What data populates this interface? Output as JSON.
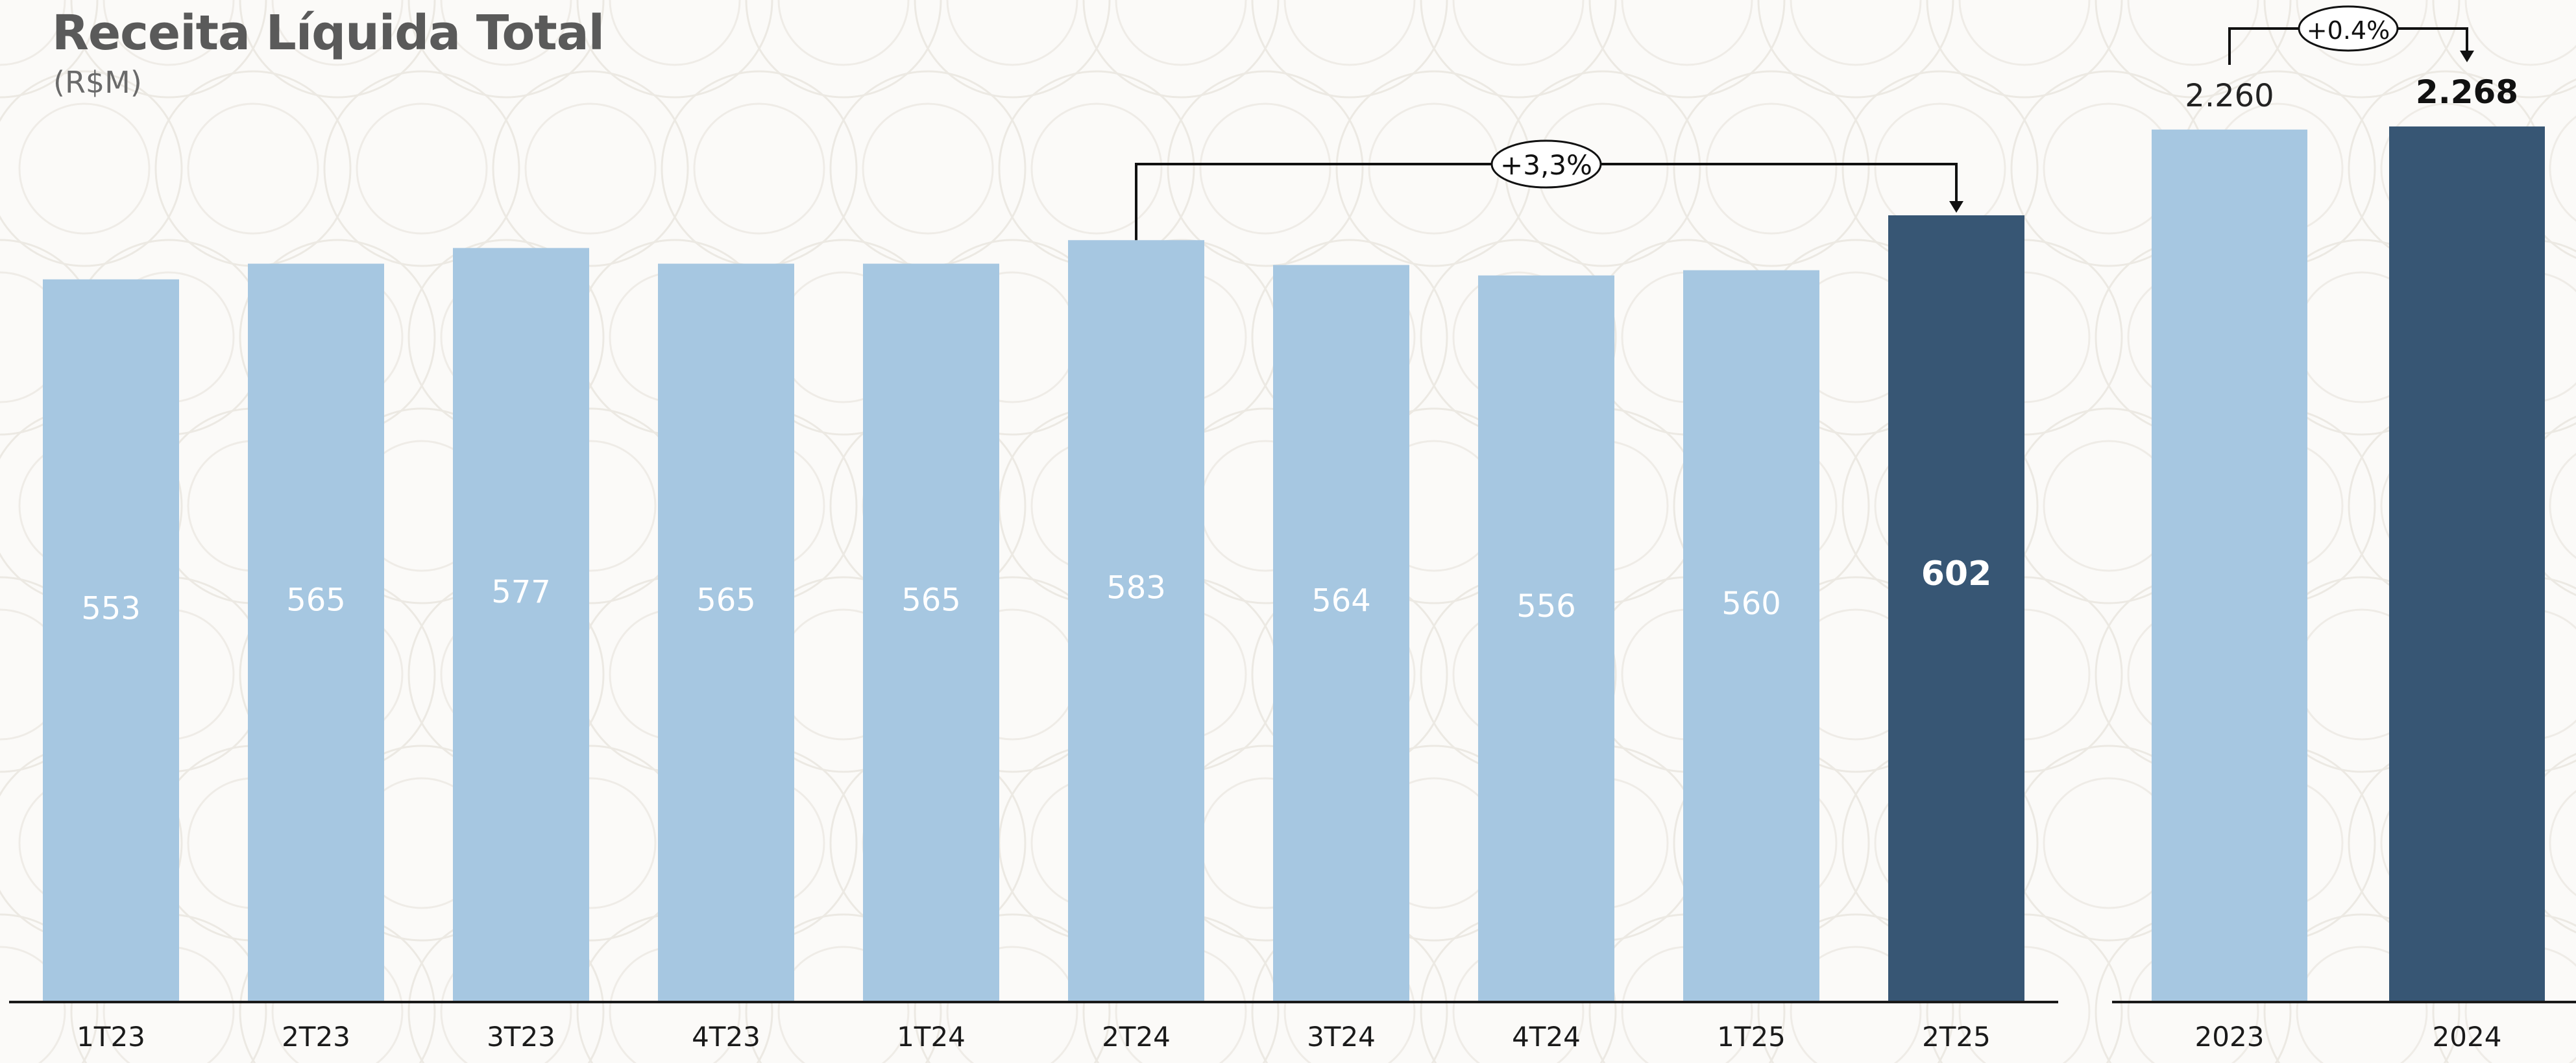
{
  "chart_data": [
    {
      "type": "bar",
      "title": "Receita Líquida Total",
      "subtitle": "(R$M)",
      "categories": [
        "1T23",
        "2T23",
        "3T23",
        "4T23",
        "1T24",
        "2T24",
        "3T24",
        "4T24",
        "1T25",
        "2T25"
      ],
      "values": [
        553,
        565,
        577,
        565,
        565,
        583,
        564,
        556,
        560,
        602
      ],
      "value_labels": [
        "553",
        "565",
        "577",
        "565",
        "565",
        "583",
        "564",
        "556",
        "560",
        "602"
      ],
      "highlight_index": 9,
      "annotation": {
        "from": "2T24",
        "to": "2T25",
        "label": "+3,3%"
      },
      "ylim": [
        0,
        602
      ]
    },
    {
      "type": "bar",
      "categories": [
        "2023",
        "2024"
      ],
      "values": [
        2260,
        2268
      ],
      "value_labels": [
        "2.260",
        "2.268"
      ],
      "highlight_index": 1,
      "annotation": {
        "from": "2023",
        "to": "2024",
        "label": "+0.4%"
      },
      "ylim": [
        0,
        2268
      ]
    }
  ],
  "colors": {
    "bar": "#a6c7e1",
    "highlight": "#375674",
    "axis": "#1a1a1a",
    "label_light": "#ffffff",
    "label_dark": "#111111"
  }
}
